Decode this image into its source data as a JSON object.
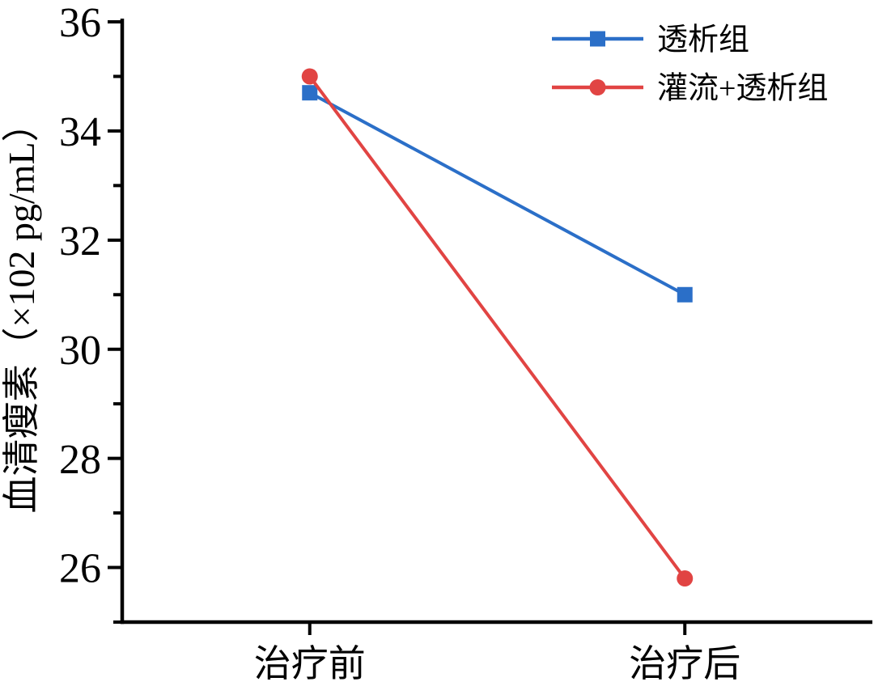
{
  "chart_data": {
    "type": "line",
    "title": "",
    "xlabel": "",
    "ylabel": "血清瘦素（×102 pg/mL）",
    "categories": [
      "治疗前",
      "治疗后"
    ],
    "series": [
      {
        "name": "透析组",
        "marker": "square",
        "color": "#2B6FC8",
        "values": [
          34.7,
          31.0
        ]
      },
      {
        "name": "灌流+透析组",
        "marker": "circle",
        "color": "#E14443",
        "values": [
          35.0,
          25.8
        ]
      }
    ],
    "ylim": [
      25,
      36
    ],
    "yticks": [
      26,
      28,
      30,
      32,
      34,
      36
    ],
    "yticks_minor": [
      25,
      27,
      29,
      31,
      33,
      35
    ],
    "grid": false,
    "legend_position": "top-right",
    "axis_color": "#000000",
    "text_color": "#000000",
    "background": "#FFFFFF"
  }
}
